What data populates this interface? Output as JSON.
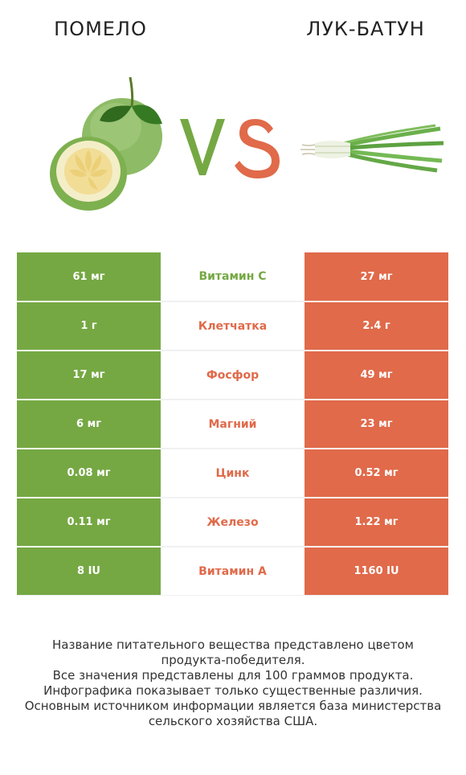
{
  "left_title": "ПОМЕЛО",
  "right_title": "ЛУК-БАТУН",
  "vs": {
    "v": "V",
    "s": "S"
  },
  "colors": {
    "left": "#75a843",
    "right": "#e06a4a"
  },
  "rows": [
    {
      "left": "61 мг",
      "nutrient": "Витамин С",
      "right": "27 мг",
      "winner": "left"
    },
    {
      "left": "1 г",
      "nutrient": "Клетчатка",
      "right": "2.4 г",
      "winner": "right"
    },
    {
      "left": "17 мг",
      "nutrient": "Фосфор",
      "right": "49 мг",
      "winner": "right"
    },
    {
      "left": "6 мг",
      "nutrient": "Магний",
      "right": "23 мг",
      "winner": "right"
    },
    {
      "left": "0.08 мг",
      "nutrient": "Цинк",
      "right": "0.52 мг",
      "winner": "right"
    },
    {
      "left": "0.11 мг",
      "nutrient": "Железо",
      "right": "1.22 мг",
      "winner": "right"
    },
    {
      "left": "8 IU",
      "nutrient": "Витамин А",
      "right": "1160 IU",
      "winner": "right"
    }
  ],
  "footer": [
    "Название питательного вещества представлено цветом",
    "продукта-победителя.",
    "Все значения представлены для 100 граммов продукта.",
    "Инфографика показывает только существенные различия.",
    "Основным источником информации является база министерства",
    "сельского хозяйства США."
  ]
}
